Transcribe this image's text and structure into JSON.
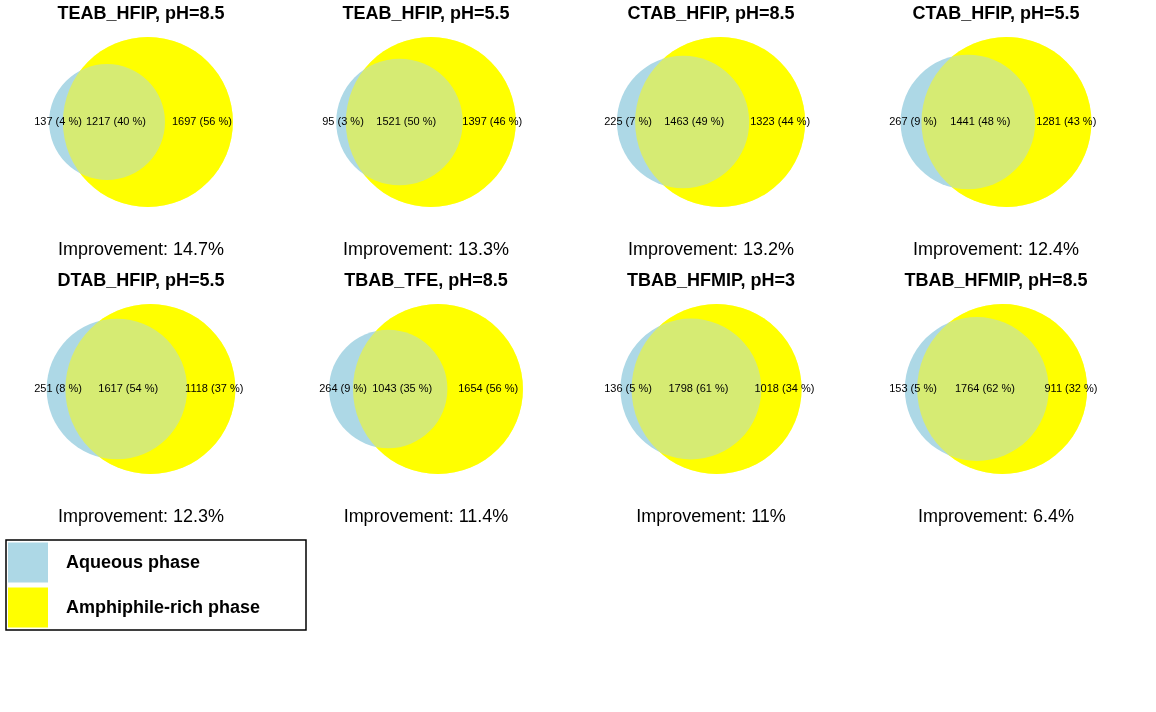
{
  "chart_data": [
    {
      "type": "other",
      "title": "TEAB_HFIP, pH=8.5",
      "categories": [
        null,
        null,
        null
      ],
      "values": [
        137,
        1217,
        1697
      ],
      "value_labels": [
        "137 (4 %)",
        "1217 (40 %)",
        "1697 (56 %)"
      ],
      "annotations": [
        "Improvement: 14.7%"
      ],
      "colors": [
        "#add8e6",
        "#d6eb73",
        "#ffff00"
      ]
    },
    {
      "type": "other",
      "title": "TEAB_HFIP, pH=5.5",
      "categories": [
        null,
        null,
        null
      ],
      "values": [
        95,
        1521,
        1397
      ],
      "value_labels": [
        "95 (3 %)",
        "1521 (50 %)",
        "1397 (46 %)"
      ],
      "annotations": [
        "Improvement: 13.3%"
      ],
      "colors": [
        "#add8e6",
        "#d6eb73",
        "#ffff00"
      ]
    },
    {
      "type": "other",
      "title": "CTAB_HFIP, pH=8.5",
      "categories": [
        null,
        null,
        null
      ],
      "values": [
        225,
        1463,
        1323
      ],
      "value_labels": [
        "225 (7 %)",
        "1463 (49 %)",
        "1323 (44 %)"
      ],
      "annotations": [
        "Improvement: 13.2%"
      ],
      "colors": [
        "#add8e6",
        "#d6eb73",
        "#ffff00"
      ]
    },
    {
      "type": "other",
      "title": "CTAB_HFIP, pH=5.5",
      "categories": [
        null,
        null,
        null
      ],
      "values": [
        267,
        1441,
        1281
      ],
      "value_labels": [
        "267 (9 %)",
        "1441 (48 %)",
        "1281 (43 %)"
      ],
      "annotations": [
        "Improvement: 12.4%"
      ],
      "colors": [
        "#add8e6",
        "#d6eb73",
        "#ffff00"
      ]
    },
    {
      "type": "other",
      "title": "DTAB_HFIP, pH=5.5",
      "categories": [
        null,
        null,
        null
      ],
      "values": [
        251,
        1617,
        1118
      ],
      "value_labels": [
        "251 (8 %)",
        "1617 (54 %)",
        "1118 (37 %)"
      ],
      "annotations": [
        "Improvement: 12.3%"
      ],
      "colors": [
        "#add8e6",
        "#d6eb73",
        "#ffff00"
      ]
    },
    {
      "type": "other",
      "title": "TBAB_TFE, pH=8.5",
      "categories": [
        null,
        null,
        null
      ],
      "values": [
        264,
        1043,
        1654
      ],
      "value_labels": [
        "264 (9 %)",
        "1043 (35 %)",
        "1654 (56 %)"
      ],
      "annotations": [
        "Improvement: 11.4%"
      ],
      "colors": [
        "#add8e6",
        "#d6eb73",
        "#ffff00"
      ]
    },
    {
      "type": "other",
      "title": "TBAB_HFMIP, pH=3",
      "categories": [
        null,
        null,
        null
      ],
      "values": [
        136,
        1798,
        1018
      ],
      "value_labels": [
        "136 (5 %)",
        "1798 (61 %)",
        "1018 (34 %)"
      ],
      "annotations": [
        "Improvement: 11%"
      ],
      "colors": [
        "#add8e6",
        "#d6eb73",
        "#ffff00"
      ]
    },
    {
      "type": "other",
      "title": "TBAB_HFMIP, pH=8.5",
      "categories": [
        null,
        null,
        null
      ],
      "values": [
        153,
        1764,
        911
      ],
      "value_labels": [
        "153 (5 %)",
        "1764 (62 %)",
        "911 (32 %)"
      ],
      "annotations": [
        "Improvement: 6.4%"
      ],
      "colors": [
        "#add8e6",
        "#d6eb73",
        "#ffff00"
      ]
    },
    {
      "type": "other",
      "categories": [
        "Aqueous phase",
        "Amphiphile-rich phase"
      ],
      "colors": [
        "#add8e6",
        "#ffff00"
      ]
    }
  ]
}
